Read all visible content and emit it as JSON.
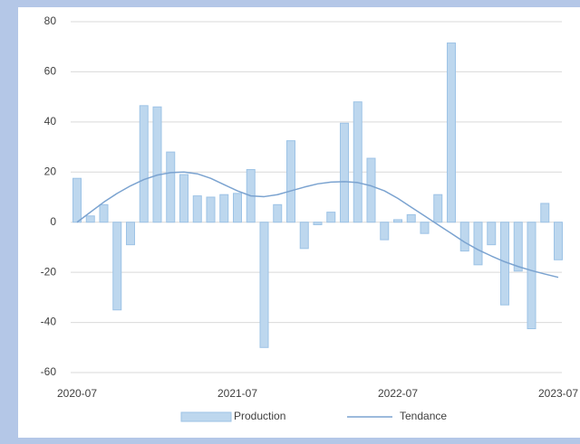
{
  "chart_data": {
    "type": "bar",
    "categories": [
      "2020-07",
      null,
      null,
      null,
      null,
      null,
      null,
      null,
      null,
      null,
      null,
      null,
      "2021-07",
      null,
      null,
      null,
      null,
      null,
      null,
      null,
      null,
      null,
      null,
      null,
      "2022-07",
      null,
      null,
      null,
      null,
      null,
      null,
      null,
      null,
      null,
      null,
      null,
      "2023-07"
    ],
    "series": [
      {
        "name": "Production",
        "color": "#bdd7ee",
        "values": [
          17.5,
          2.5,
          7,
          -35,
          -9,
          46.5,
          46,
          28,
          19,
          10.5,
          10,
          11,
          11.5,
          21,
          -50,
          7,
          32.5,
          -10.5,
          -1,
          4,
          39.5,
          48,
          25.5,
          -7,
          1,
          3,
          -4.5,
          11,
          71.5,
          -11.5,
          -17,
          -9,
          -33,
          -19.5,
          -42.5,
          7.5,
          -15
        ]
      },
      {
        "name": "Tendance",
        "type": "line",
        "color": "#7ba3d0",
        "values": [
          0,
          4,
          8,
          11.5,
          14.5,
          17,
          18.8,
          19.8,
          20,
          19.3,
          17.5,
          15,
          12.5,
          10.5,
          10.2,
          11,
          12.5,
          14,
          15.3,
          16,
          16.2,
          15.8,
          14.5,
          12.5,
          9.5,
          6,
          2.5,
          -1,
          -4.5,
          -8,
          -11,
          -13.5,
          -15.8,
          -17.7,
          -19.3,
          -20.7,
          -22
        ]
      }
    ],
    "ylim": [
      -60,
      80
    ],
    "yticks": [
      -60,
      -40,
      -20,
      0,
      20,
      40,
      60,
      80
    ],
    "grid": true,
    "legend": "bottom"
  }
}
